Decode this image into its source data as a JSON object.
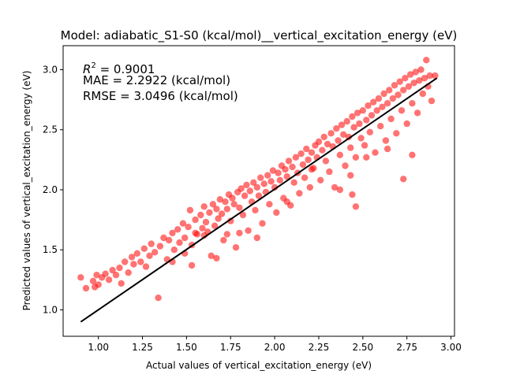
{
  "chart_data": {
    "type": "scatter",
    "title": "Model: adiabatic_S1-S0 (kcal/mol)__vertical_excitation_energy (eV)",
    "xlabel": "Actual values of vertical_excitation_energy (eV)",
    "ylabel": "Predicted values of vertical_excitation_energy (eV)",
    "xlim": [
      0.8,
      3.02
    ],
    "ylim": [
      0.78,
      3.2
    ],
    "xticks": [
      "1.00",
      "1.25",
      "1.50",
      "1.75",
      "2.00",
      "2.25",
      "2.50",
      "2.75",
      "3.00"
    ],
    "yticks": [
      "1.0",
      "1.5",
      "2.0",
      "2.5",
      "3.0"
    ],
    "grid": false,
    "annotations": {
      "r2_label": "R",
      "r2_sup": "2",
      "r2_value": " = 0.9001",
      "mae": "MAE = 2.2922 (kcal/mol)",
      "rmse": "RMSE = 3.0496 (kcal/mol)"
    },
    "series": [
      {
        "marker_color": "#ff0000",
        "marker_alpha": 0.55,
        "points": [
          [
            0.9,
            1.27
          ],
          [
            0.93,
            1.18
          ],
          [
            0.97,
            1.24
          ],
          [
            0.98,
            1.19
          ],
          [
            0.99,
            1.29
          ],
          [
            1.0,
            1.21
          ],
          [
            1.02,
            1.27
          ],
          [
            1.04,
            1.3
          ],
          [
            1.06,
            1.25
          ],
          [
            1.08,
            1.33
          ],
          [
            1.1,
            1.29
          ],
          [
            1.12,
            1.35
          ],
          [
            1.13,
            1.22
          ],
          [
            1.15,
            1.4
          ],
          [
            1.17,
            1.31
          ],
          [
            1.19,
            1.44
          ],
          [
            1.2,
            1.38
          ],
          [
            1.22,
            1.47
          ],
          [
            1.24,
            1.4
          ],
          [
            1.26,
            1.51
          ],
          [
            1.27,
            1.36
          ],
          [
            1.29,
            1.45
          ],
          [
            1.3,
            1.55
          ],
          [
            1.32,
            1.48
          ],
          [
            1.34,
            1.1
          ],
          [
            1.35,
            1.53
          ],
          [
            1.37,
            1.6
          ],
          [
            1.39,
            1.42
          ],
          [
            1.4,
            1.58
          ],
          [
            1.42,
            1.64
          ],
          [
            1.43,
            1.5
          ],
          [
            1.45,
            1.67
          ],
          [
            1.46,
            1.56
          ],
          [
            1.48,
            1.72
          ],
          [
            1.49,
            1.6
          ],
          [
            1.51,
            1.69
          ],
          [
            1.52,
            1.83
          ],
          [
            1.53,
            1.54
          ],
          [
            1.55,
            1.75
          ],
          [
            1.56,
            1.63
          ],
          [
            1.58,
            1.79
          ],
          [
            1.59,
            1.68
          ],
          [
            1.6,
            1.86
          ],
          [
            1.61,
            1.73
          ],
          [
            1.62,
            1.65
          ],
          [
            1.63,
            1.81
          ],
          [
            1.64,
            1.45
          ],
          [
            1.65,
            1.88
          ],
          [
            1.66,
            1.7
          ],
          [
            1.67,
            1.84
          ],
          [
            1.68,
            1.76
          ],
          [
            1.69,
            1.92
          ],
          [
            1.7,
            1.8
          ],
          [
            1.71,
            1.58
          ],
          [
            1.72,
            1.9
          ],
          [
            1.73,
            1.84
          ],
          [
            1.74,
            1.96
          ],
          [
            1.75,
            1.74
          ],
          [
            1.76,
            1.93
          ],
          [
            1.77,
            1.88
          ],
          [
            1.78,
            1.52
          ],
          [
            1.79,
            1.98
          ],
          [
            1.8,
            1.85
          ],
          [
            1.81,
            2.01
          ],
          [
            1.82,
            1.79
          ],
          [
            1.83,
            1.95
          ],
          [
            1.84,
            2.04
          ],
          [
            1.85,
            1.66
          ],
          [
            1.86,
            1.99
          ],
          [
            1.87,
            1.9
          ],
          [
            1.88,
            2.06
          ],
          [
            1.89,
            1.83
          ],
          [
            1.9,
            2.02
          ],
          [
            1.91,
            1.95
          ],
          [
            1.92,
            2.1
          ],
          [
            1.93,
            1.72
          ],
          [
            1.94,
            2.05
          ],
          [
            1.95,
            1.98
          ],
          [
            1.96,
            2.12
          ],
          [
            1.97,
            1.88
          ],
          [
            1.98,
            2.07
          ],
          [
            1.99,
            2.16
          ],
          [
            2.0,
            2.02
          ],
          [
            2.01,
            1.81
          ],
          [
            2.02,
            2.14
          ],
          [
            2.03,
            2.08
          ],
          [
            2.04,
            2.2
          ],
          [
            2.05,
            1.93
          ],
          [
            2.06,
            2.17
          ],
          [
            2.07,
            2.11
          ],
          [
            2.08,
            2.24
          ],
          [
            2.09,
            1.87
          ],
          [
            2.1,
            2.19
          ],
          [
            2.11,
            2.06
          ],
          [
            2.12,
            2.27
          ],
          [
            2.13,
            2.14
          ],
          [
            2.14,
            1.97
          ],
          [
            2.15,
            2.3
          ],
          [
            2.16,
            2.21
          ],
          [
            2.17,
            2.1
          ],
          [
            2.18,
            2.34
          ],
          [
            2.19,
            2.25
          ],
          [
            2.2,
            2.02
          ],
          [
            2.21,
            2.31
          ],
          [
            2.22,
            2.18
          ],
          [
            2.23,
            2.37
          ],
          [
            2.24,
            2.27
          ],
          [
            2.25,
            2.4
          ],
          [
            2.26,
            2.08
          ],
          [
            2.27,
            2.33
          ],
          [
            2.28,
            2.44
          ],
          [
            2.29,
            2.24
          ],
          [
            2.3,
            2.38
          ],
          [
            2.31,
            2.15
          ],
          [
            2.32,
            2.47
          ],
          [
            2.33,
            2.36
          ],
          [
            2.34,
            2.02
          ],
          [
            2.35,
            2.51
          ],
          [
            2.36,
            2.41
          ],
          [
            2.37,
            2.29
          ],
          [
            2.38,
            2.54
          ],
          [
            2.39,
            2.46
          ],
          [
            2.4,
            2.2
          ],
          [
            2.41,
            2.57
          ],
          [
            2.42,
            2.44
          ],
          [
            2.43,
            2.35
          ],
          [
            2.44,
            2.61
          ],
          [
            2.45,
            2.52
          ],
          [
            2.46,
            2.27
          ],
          [
            2.47,
            2.64
          ],
          [
            2.48,
            2.55
          ],
          [
            2.49,
            2.43
          ],
          [
            2.5,
            2.66
          ],
          [
            2.51,
            2.37
          ],
          [
            2.52,
            2.58
          ],
          [
            2.53,
            2.7
          ],
          [
            2.54,
            2.48
          ],
          [
            2.55,
            2.62
          ],
          [
            2.56,
            2.73
          ],
          [
            2.57,
            2.31
          ],
          [
            2.58,
            2.66
          ],
          [
            2.59,
            2.76
          ],
          [
            2.6,
            2.53
          ],
          [
            2.61,
            2.69
          ],
          [
            2.62,
            2.8
          ],
          [
            2.63,
            2.41
          ],
          [
            2.64,
            2.72
          ],
          [
            2.65,
            2.83
          ],
          [
            2.66,
            2.59
          ],
          [
            2.67,
            2.76
          ],
          [
            2.68,
            2.87
          ],
          [
            2.69,
            2.47
          ],
          [
            2.7,
            2.79
          ],
          [
            2.71,
            2.9
          ],
          [
            2.72,
            2.66
          ],
          [
            2.73,
            2.83
          ],
          [
            2.74,
            2.93
          ],
          [
            2.75,
            2.55
          ],
          [
            2.76,
            2.86
          ],
          [
            2.77,
            2.96
          ],
          [
            2.78,
            2.72
          ],
          [
            2.79,
            2.89
          ],
          [
            2.8,
            2.98
          ],
          [
            2.81,
            2.64
          ],
          [
            2.82,
            2.91
          ],
          [
            2.83,
            3.0
          ],
          [
            2.84,
            2.8
          ],
          [
            2.85,
            2.93
          ],
          [
            2.86,
            3.08
          ],
          [
            2.87,
            2.86
          ],
          [
            2.88,
            2.95
          ],
          [
            2.89,
            2.74
          ],
          [
            2.91,
            2.95
          ],
          [
            2.46,
            1.86
          ],
          [
            2.44,
            1.96
          ],
          [
            2.37,
            2.0
          ],
          [
            2.21,
            2.17
          ],
          [
            1.53,
            1.37
          ],
          [
            1.6,
            1.62
          ],
          [
            1.42,
            1.4
          ],
          [
            1.55,
            1.64
          ],
          [
            1.8,
            1.64
          ],
          [
            1.9,
            1.6
          ],
          [
            2.43,
            2.12
          ],
          [
            2.52,
            2.27
          ],
          [
            2.64,
            2.34
          ],
          [
            2.78,
            2.29
          ],
          [
            2.73,
            2.09
          ],
          [
            1.49,
            1.47
          ],
          [
            1.67,
            1.43
          ],
          [
            1.73,
            1.63
          ],
          [
            2.07,
            1.9
          ]
        ]
      }
    ],
    "fit_line": {
      "x": [
        0.9,
        2.92
      ],
      "y": [
        0.9,
        2.93
      ],
      "color": "#000000"
    }
  }
}
